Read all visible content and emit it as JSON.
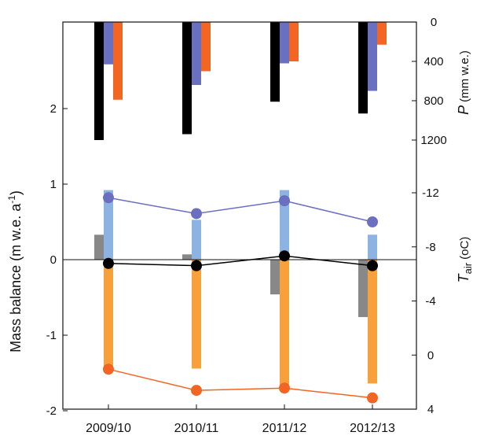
{
  "chart_data": {
    "type": "bar",
    "categories": [
      "2009/10",
      "2010/11",
      "2011/12",
      "2012/13"
    ],
    "left_axis": {
      "label": "Mass balance (m w.e. a",
      "label_sup": "-1",
      "label_close": ")",
      "ylim": [
        -2,
        2.3
      ],
      "ticks": [
        {
          "value": -2,
          "label": "-2"
        },
        {
          "value": -1,
          "label": "-1"
        },
        {
          "value": 0,
          "label": "0"
        },
        {
          "value": 1,
          "label": "1"
        },
        {
          "value": 2,
          "label": "2"
        }
      ]
    },
    "right_axis_top": {
      "label_symbol": "P",
      "label_units": "(mm w.e.)",
      "range": [
        0,
        1300
      ],
      "reversed": true,
      "ticks": [
        {
          "value": 0,
          "label": "0"
        },
        {
          "value": 400,
          "label": "400"
        },
        {
          "value": 800,
          "label": "800"
        },
        {
          "value": 1200,
          "label": "1200"
        }
      ]
    },
    "right_axis_bottom": {
      "label_symbol": "T",
      "label_sub": "air",
      "label_units": "(oC)",
      "range": [
        -12,
        4
      ],
      "reversed": true,
      "ticks": [
        {
          "value": -12,
          "label": "-12"
        },
        {
          "value": -8,
          "label": "-8"
        },
        {
          "value": -4,
          "label": "-4"
        },
        {
          "value": 0,
          "label": "0"
        },
        {
          "value": 4,
          "label": "4"
        }
      ]
    },
    "precipitation_bars": [
      {
        "color": "#000000",
        "offset": -12,
        "width": 12,
        "values": [
          1200,
          1140,
          810,
          930
        ]
      },
      {
        "color": "#6b6fbf",
        "offset": 0,
        "width": 12,
        "values": [
          430,
          640,
          420,
          700
        ]
      },
      {
        "color": "#f26522",
        "offset": 12,
        "width": 12,
        "values": [
          790,
          500,
          400,
          230
        ]
      }
    ],
    "mass_balance_bars": [
      {
        "color": "#888888",
        "offset": -12,
        "width": 12,
        "values": [
          0.33,
          0.07,
          -0.46,
          -0.76
        ]
      }
    ],
    "temperature_bars": [
      {
        "color": "#8db3e2",
        "offset": 0,
        "width": 12,
        "values": [
          -12.2,
          -10.0,
          -12.2,
          -8.9
        ]
      },
      {
        "color": "#f7a03c",
        "offset": 0,
        "width": 12,
        "values": [
          1.2,
          1.0,
          2.4,
          2.1
        ]
      }
    ],
    "mass_balance_lines": [
      {
        "color": "#6b6fbf",
        "marker": "#6b6fbf",
        "values": [
          0.82,
          0.61,
          0.78,
          0.5
        ]
      },
      {
        "color": "#000000",
        "marker": "#000000",
        "values": [
          -0.05,
          -0.08,
          0.05,
          -0.08
        ]
      },
      {
        "color": "#f26522",
        "marker": "#f26522",
        "values": [
          -1.45,
          -1.73,
          -1.7,
          -1.83
        ]
      }
    ],
    "zero_line": true,
    "grid": false
  }
}
